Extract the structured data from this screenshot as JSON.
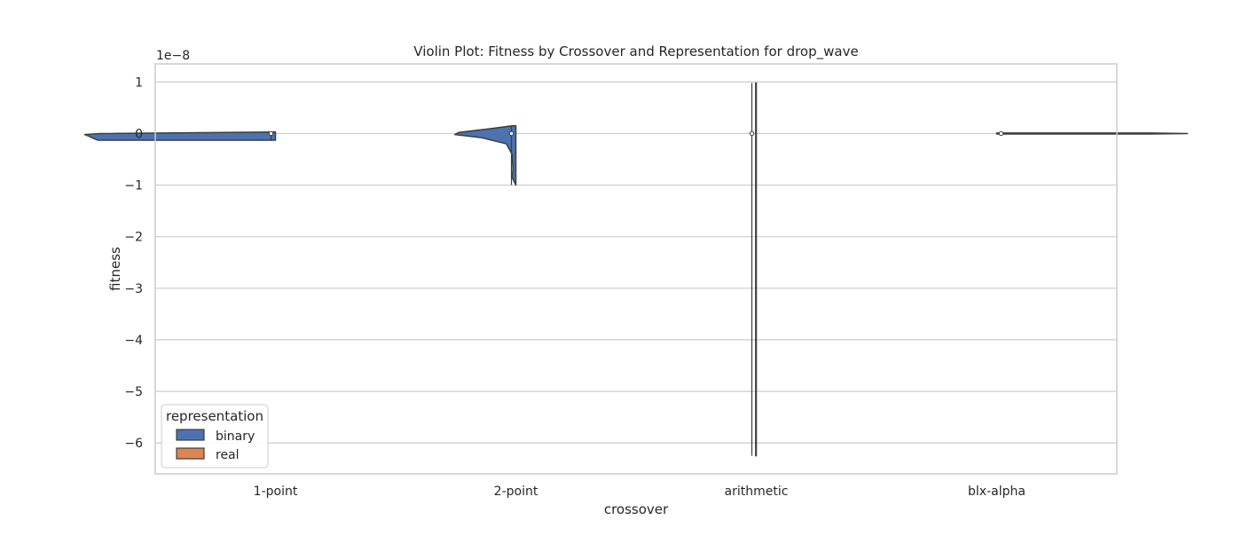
{
  "chart_data": {
    "type": "violin",
    "title": "Violin Plot: Fitness by Crossover and Representation for drop_wave",
    "xlabel": "crossover",
    "ylabel": "fitness",
    "y_offset_text": "1e−8",
    "y_scale_factor": 1e-08,
    "categories": [
      "1-point",
      "2-point",
      "arithmetic",
      "blx-alpha"
    ],
    "ylim": [
      -6.6,
      1.35
    ],
    "yticks": [
      1,
      0,
      -1,
      -2,
      -3,
      -4,
      -5,
      -6
    ],
    "ytick_labels": [
      "1",
      "0",
      "−1",
      "−2",
      "−3",
      "−4",
      "−5",
      "−6"
    ],
    "grid": true,
    "legend": {
      "title": "representation",
      "placement": "lower-left",
      "entries": [
        {
          "label": "binary",
          "color": "#4c72b0"
        },
        {
          "label": "real",
          "color": "#dd8452"
        }
      ]
    },
    "series": [
      {
        "name": "binary",
        "color": "#4c72b0",
        "violins": [
          {
            "category": "1-point",
            "min": -0.13,
            "max": 0.03,
            "median": 0.0,
            "profile": [
              [
                0.03,
                0.0
              ],
              [
                0.0,
                0.92
              ],
              [
                -0.02,
                1.0
              ],
              [
                -0.05,
                0.98
              ],
              [
                -0.1,
                0.95
              ],
              [
                -0.13,
                0.93
              ]
            ]
          },
          {
            "category": "2-point",
            "min": -1.0,
            "max": 0.15,
            "median": 0.0,
            "profile": [
              [
                0.15,
                0.02
              ],
              [
                0.1,
                0.12
              ],
              [
                0.02,
                0.3
              ],
              [
                -0.02,
                0.32
              ],
              [
                -0.08,
                0.18
              ],
              [
                -0.2,
                0.05
              ],
              [
                -0.4,
                0.02
              ],
              [
                -0.7,
                0.015
              ],
              [
                -0.85,
                0.02
              ],
              [
                -1.0,
                0.0
              ]
            ]
          },
          {
            "category": "arithmetic",
            "min": -6.25,
            "max": 0.98,
            "median": 0.0,
            "profile": [
              [
                0.98,
                0.003
              ],
              [
                -6.25,
                0.003
              ]
            ]
          }
        ]
      },
      {
        "name": "real",
        "color": "#dd8452",
        "violins": [
          {
            "category": "blx-alpha",
            "min": -0.01,
            "max": 0.01,
            "median": 0.0,
            "profile": [
              [
                0.01,
                0.8
              ],
              [
                0.0,
                1.0
              ],
              [
                -0.01,
                0.8
              ]
            ]
          }
        ]
      }
    ]
  }
}
